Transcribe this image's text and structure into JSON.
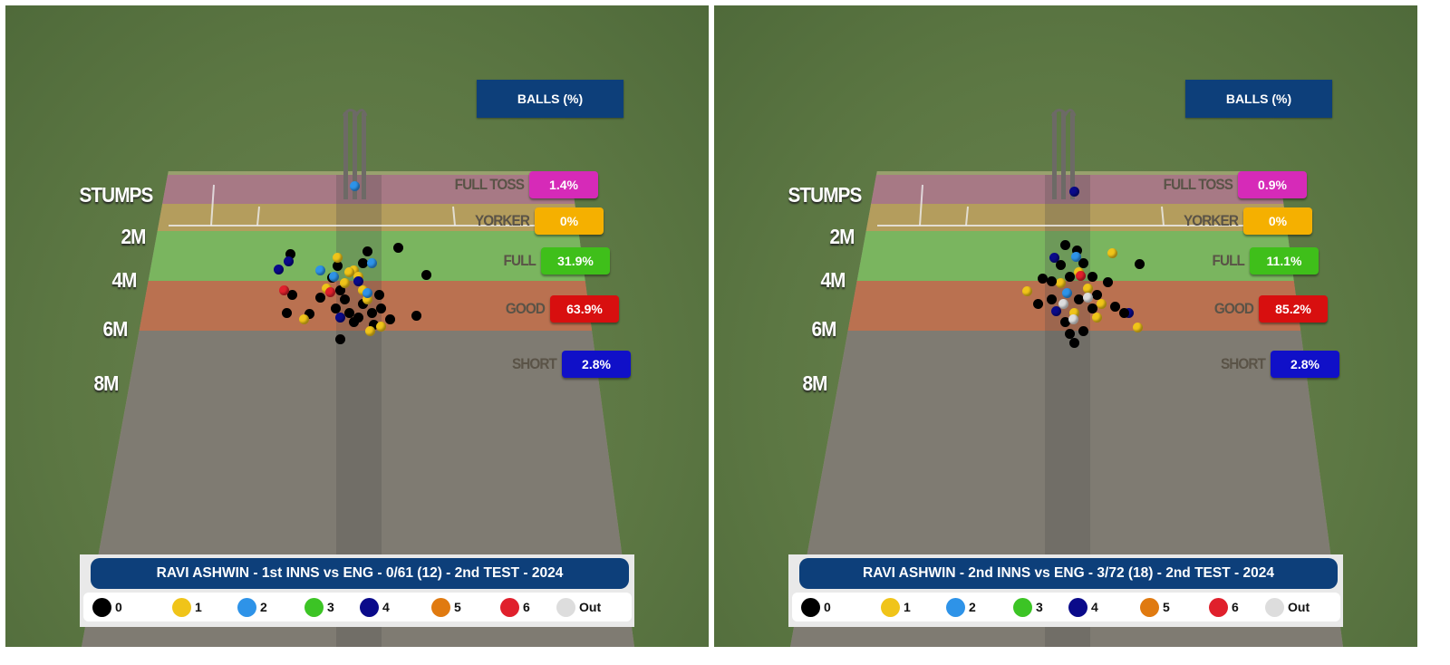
{
  "panels": [
    {
      "header": "BALLS (%)",
      "caption": "RAVI ASHWIN - 1st INNS vs ENG - 0/61 (12) - 2nd TEST - 2024",
      "zones": [
        {
          "label": "FULL TOSS",
          "pct": "1.4%"
        },
        {
          "label": "YORKER",
          "pct": "0%"
        },
        {
          "label": "FULL",
          "pct": "31.9%"
        },
        {
          "label": "GOOD",
          "pct": "63.9%"
        },
        {
          "label": "SHORT",
          "pct": "2.8%"
        }
      ]
    },
    {
      "header": "BALLS (%)",
      "caption": "RAVI ASHWIN - 2nd INNS vs ENG - 3/72 (18) - 2nd TEST - 2024",
      "zones": [
        {
          "label": "FULL TOSS",
          "pct": "0.9%"
        },
        {
          "label": "YORKER",
          "pct": "0%"
        },
        {
          "label": "FULL",
          "pct": "11.1%"
        },
        {
          "label": "GOOD",
          "pct": "85.2%"
        },
        {
          "label": "SHORT",
          "pct": "2.8%"
        }
      ]
    }
  ],
  "distance_labels": [
    "STUMPS",
    "2M",
    "4M",
    "6M",
    "8M"
  ],
  "zone_colors": [
    "#d62ab8",
    "#f5b000",
    "#3fbf1a",
    "#d80f0f",
    "#1010c8"
  ],
  "legend": [
    {
      "label": "0",
      "color": "#000000"
    },
    {
      "label": "1",
      "color": "#f0c419"
    },
    {
      "label": "2",
      "color": "#2e93e8"
    },
    {
      "label": "3",
      "color": "#3cc425"
    },
    {
      "label": "4",
      "color": "#0a0a8a"
    },
    {
      "label": "5",
      "color": "#e07a10"
    },
    {
      "label": "6",
      "color": "#e0202c"
    },
    {
      "label": "Out",
      "color": "#dddddd"
    }
  ]
}
